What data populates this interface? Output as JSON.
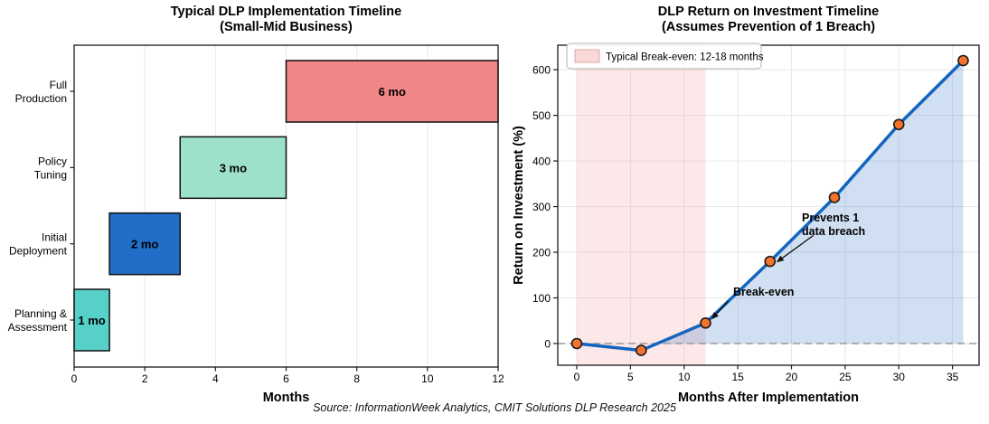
{
  "figure": {
    "source_note": "Source: InformationWeek Analytics, CMIT Solutions DLP Research 2025"
  },
  "chart_data": [
    {
      "type": "bar",
      "variant": "gantt",
      "title": "Typical DLP Implementation Timeline",
      "subtitle": "(Small-Mid Business)",
      "xlabel": "Months",
      "xlim": [
        0,
        12
      ],
      "xticks": [
        0,
        2,
        4,
        6,
        8,
        10,
        12
      ],
      "grid": "vertical",
      "bars": [
        {
          "category": "Planning &\nAssessment",
          "start": 0,
          "duration": 1,
          "label": "1 mo",
          "color": "#4ECDC4"
        },
        {
          "category": "Initial\nDeployment",
          "start": 1,
          "duration": 2,
          "label": "2 mo",
          "color": "#1565C4"
        },
        {
          "category": "Policy\nTuning",
          "start": 3,
          "duration": 3,
          "label": "3 mo",
          "color": "#98DFC8"
        },
        {
          "category": "Full\nProduction",
          "start": 6,
          "duration": 6,
          "label": "6 mo",
          "color": "#F08080"
        }
      ]
    },
    {
      "type": "line",
      "title": "DLP Return on Investment Timeline",
      "subtitle": "(Assumes Prevention of 1 Breach)",
      "xlabel": "Months After Implementation",
      "ylabel": "Return on Investment (%)",
      "x": [
        0,
        6,
        12,
        18,
        24,
        30,
        36
      ],
      "y": [
        0,
        -15,
        45,
        180,
        320,
        480,
        620
      ],
      "xticks": [
        0,
        5,
        10,
        15,
        20,
        25,
        30,
        35
      ],
      "yticks": [
        0,
        100,
        200,
        300,
        400,
        500,
        600
      ],
      "xlim": [
        -1.77,
        37.5
      ],
      "ylim": [
        -48,
        654
      ],
      "grid": "both",
      "line_color": "#1565C0",
      "marker_color": "#F4732C",
      "fill_color": "#1565C0",
      "zero_line_color": "#999999",
      "breakeven_region": {
        "x0": 0,
        "x1": 12,
        "color": "#F08080",
        "label": "Typical Break-even: 12-18 months"
      },
      "annotations": [
        {
          "text": "Break-even",
          "target_x": 12,
          "target_y": 45,
          "text_x": 14.57,
          "text_y": 105,
          "arrow_from_x": 14.1,
          "arrow_from_y": 93,
          "arrow_to_x": 12.55,
          "arrow_to_y": 53
        },
        {
          "text": "Prevents 1\ndata breach",
          "target_x": 18,
          "target_y": 180,
          "text_x": 20.97,
          "text_y": 267,
          "arrow_from_x": 22.05,
          "arrow_from_y": 237,
          "arrow_to_x": 18.6,
          "arrow_to_y": 178
        }
      ]
    }
  ]
}
